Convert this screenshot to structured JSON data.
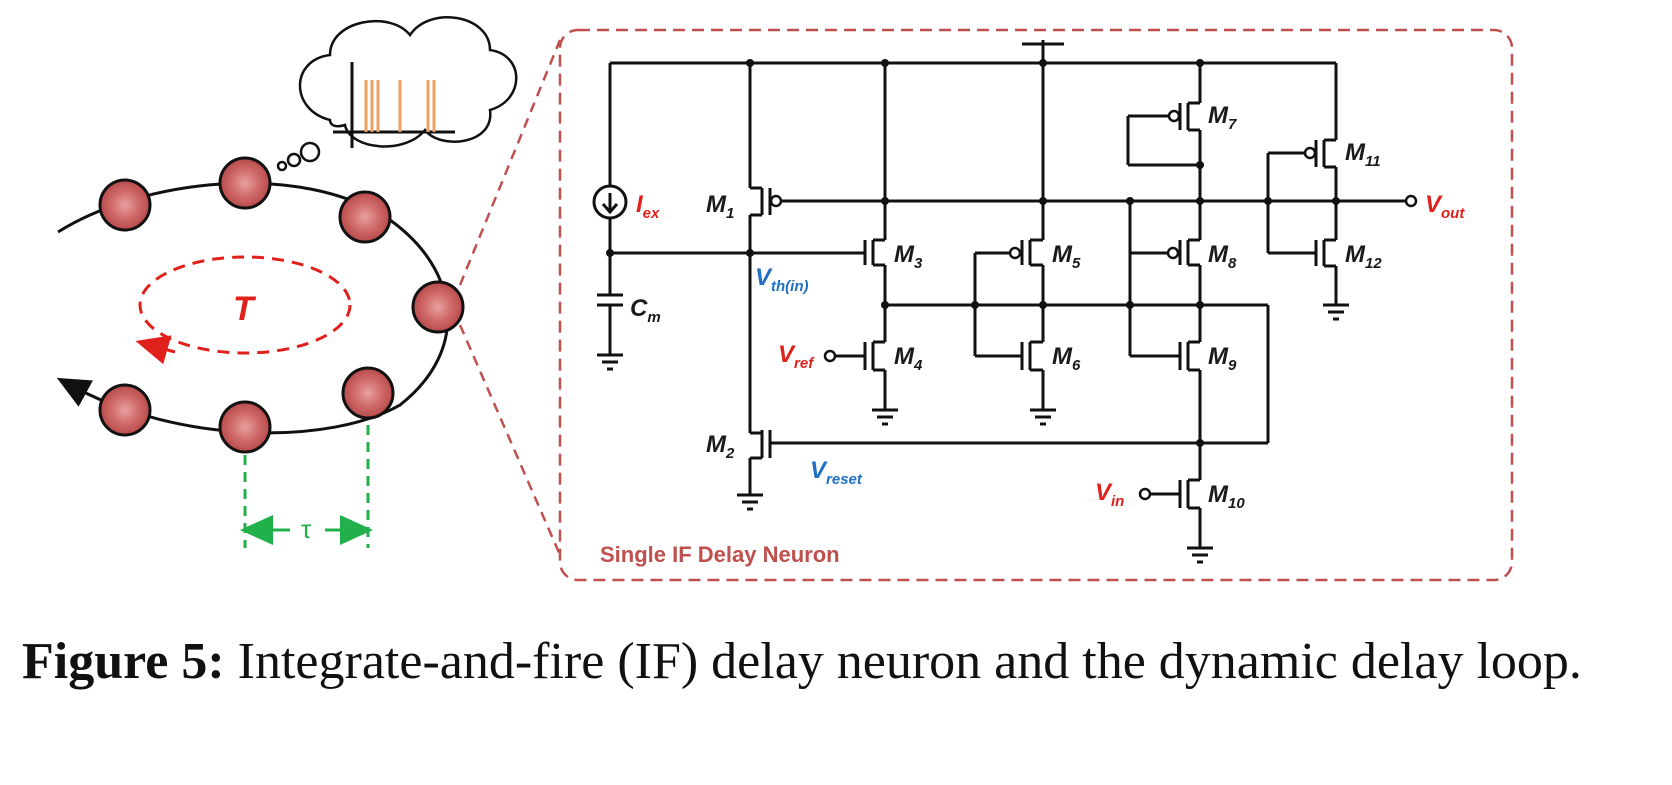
{
  "loop": {
    "period_label": "T",
    "delay_label": "τ"
  },
  "circuit": {
    "title": "Single IF Delay Neuron",
    "labels": {
      "iex": "I",
      "iex_sub": "ex",
      "cm": "C",
      "cm_sub": "m",
      "vth": "V",
      "vth_sub": "th(in)",
      "vref": "V",
      "vref_sub": "ref",
      "vreset": "V",
      "vreset_sub": "reset",
      "vin": "V",
      "vin_sub": "in",
      "vout": "V",
      "vout_sub": "out"
    },
    "transistors": [
      {
        "name": "M",
        "sub": "1"
      },
      {
        "name": "M",
        "sub": "2"
      },
      {
        "name": "M",
        "sub": "3"
      },
      {
        "name": "M",
        "sub": "4"
      },
      {
        "name": "M",
        "sub": "5"
      },
      {
        "name": "M",
        "sub": "6"
      },
      {
        "name": "M",
        "sub": "7"
      },
      {
        "name": "M",
        "sub": "8"
      },
      {
        "name": "M",
        "sub": "9"
      },
      {
        "name": "M",
        "sub": "10"
      },
      {
        "name": "M",
        "sub": "11"
      },
      {
        "name": "M",
        "sub": "12"
      }
    ]
  },
  "caption": {
    "label": "Figure 5:",
    "text": " Integrate-and-fire (IF) delay neuron and the dynamic delay loop."
  },
  "colors": {
    "neuron_fill": "#c95a5a",
    "dashed_red": "#e0201b",
    "box_border": "#c0504d",
    "spike_orange": "#f0a060",
    "delay_green": "#22b04b",
    "label_red": "#e0201b",
    "label_blue": "#1f6fc4"
  }
}
